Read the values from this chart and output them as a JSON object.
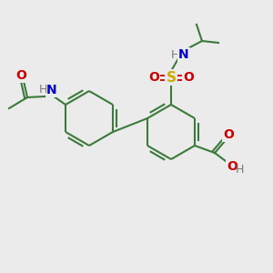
{
  "bg_color": "#ebebeb",
  "bond_color": "#3a7a3a",
  "atom_colors": {
    "O": "#cc0000",
    "N": "#0000cc",
    "S": "#ccaa00",
    "H": "#777777",
    "C": "#3a7a3a"
  },
  "fig_size": [
    3.0,
    3.0
  ],
  "dpi": 100
}
